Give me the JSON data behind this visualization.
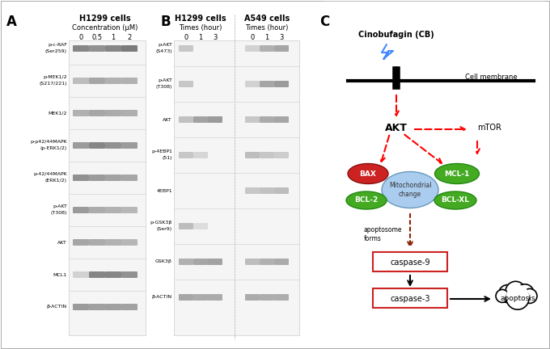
{
  "panel_A_label": "A",
  "panel_B_label": "B",
  "panel_C_label": "C",
  "panel_A_title": "H1299 cells",
  "panel_A_subtitle": "Concentration (μM)",
  "panel_A_conc": [
    "0",
    "0.5",
    "1",
    "2"
  ],
  "panel_A_rows": [
    "p-c-RAF\n(Ser259)",
    "p-MEK1/2\n(S217/221)",
    "MEK1/2",
    "p-p42/44MAPK\n(p-ERK1/2)",
    "p-42/44MAPK\n(ERK1/2)",
    "p-AKT\n(T308)",
    "AKT",
    "MCL1",
    "β-ACTIN"
  ],
  "panel_B_title_left": "H1299 cells",
  "panel_B_title_right": "A549 cells",
  "panel_B_subtitle": "Times (hour)",
  "panel_B_times": [
    "0",
    "1",
    "3"
  ],
  "panel_B_rows": [
    "p-AKT\n(S473)",
    "p-AKT\n(T308)",
    "AKT",
    "p-4EBP1\n(51)",
    "4EBP1",
    "p-GSK3β\n(Ser9)",
    "GSK3β",
    "β-ACTIN"
  ],
  "panel_C_label_cinobufagin": "Cinobufagin (CB)",
  "panel_C_label_membrane": "Cell membrane",
  "panel_C_label_AKT": "AKT",
  "panel_C_label_mTOR": "mTOR",
  "panel_C_label_BAX": "BAX",
  "panel_C_label_MCL1": "MCL-1",
  "panel_C_label_BCL2": "BCL-2",
  "panel_C_label_mito": "Mitochondrial\nchange",
  "panel_C_label_BCLXL": "BCL-XL",
  "panel_C_label_apoptosome": "apoptosome\nforms",
  "panel_C_label_caspase9": "caspase-9",
  "panel_C_label_caspase3": "caspase-3",
  "panel_C_label_apoptosis": "apoptosis",
  "bg_color": "#f0f0f0",
  "band_color_dark": "#333333",
  "band_color_mid": "#666666",
  "band_color_light": "#aaaaaa"
}
